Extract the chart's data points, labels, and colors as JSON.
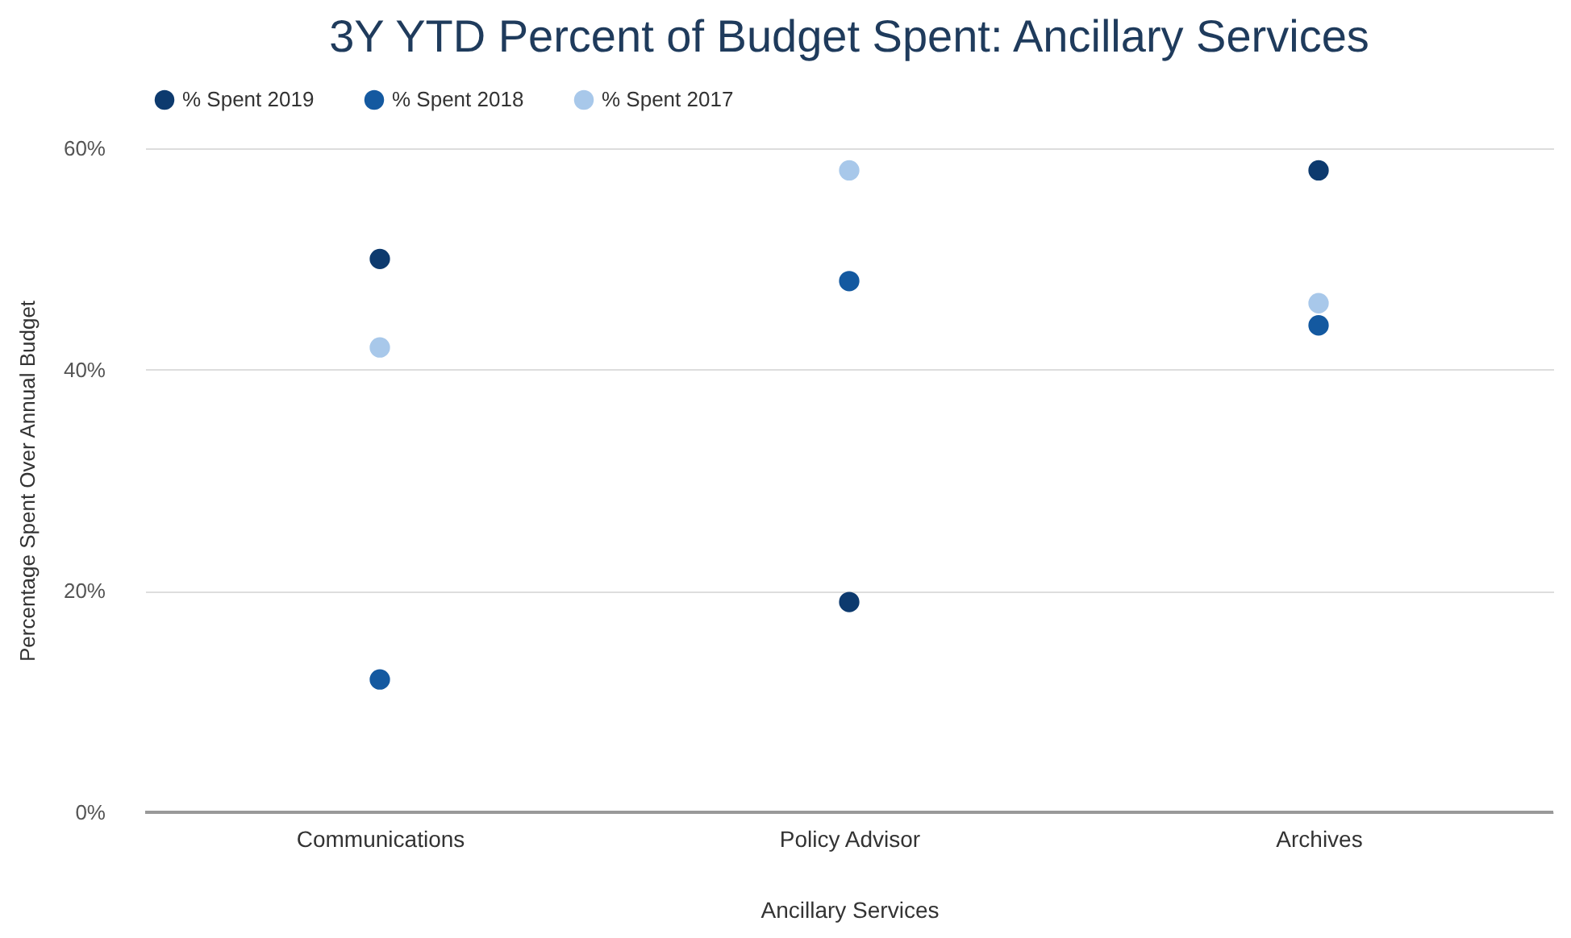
{
  "chart_data": {
    "type": "scatter",
    "title": "3Y YTD Percent of Budget Spent: Ancillary Services",
    "xlabel": "Ancillary Services",
    "ylabel": "Percentage Spent Over Annual Budget",
    "categories": [
      "Communications",
      "Policy Advisor",
      "Archives"
    ],
    "series": [
      {
        "name": "% Spent 2019",
        "color": "#0d3a6e",
        "values": [
          50,
          19,
          58
        ]
      },
      {
        "name": "% Spent 2018",
        "color": "#1459a0",
        "values": [
          12,
          48,
          44
        ]
      },
      {
        "name": "% Spent 2017",
        "color": "#a8c8ea",
        "values": [
          42,
          58,
          46
        ]
      }
    ],
    "ylim": [
      0,
      60
    ],
    "yticks": [
      {
        "value": 0,
        "label": "0%"
      },
      {
        "value": 20,
        "label": "20%"
      },
      {
        "value": 40,
        "label": "40%"
      },
      {
        "value": 60,
        "label": "60%"
      }
    ],
    "grid": "y",
    "legend": "top",
    "marker": "circle"
  }
}
